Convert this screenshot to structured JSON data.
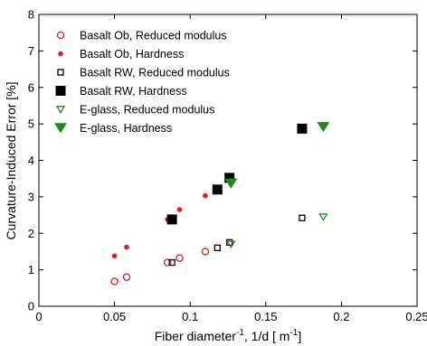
{
  "chart_data": {
    "type": "scatter",
    "xlabel": "Fiber diameter",
    "xlabel_sup": "-1",
    "xlabel_unit": ", 1/d [   m",
    "xlabel_unit_sup": "-1",
    "xlabel_close": "]",
    "ylabel": "Curvature-Induced Error [%]",
    "xlim": [
      0,
      0.25
    ],
    "ylim": [
      0,
      8
    ],
    "xticks": [
      0,
      0.05,
      0.1,
      0.15,
      0.2,
      0.25
    ],
    "xtick_labels": [
      "0",
      "0.05",
      "0.1",
      "0.15",
      "0.2",
      "0.25"
    ],
    "yticks": [
      0,
      1,
      2,
      3,
      4,
      5,
      6,
      7,
      8
    ],
    "ytick_labels": [
      "0",
      "1",
      "2",
      "3",
      "4",
      "5",
      "6",
      "7",
      "8"
    ],
    "grid": false,
    "legend_position": "top-left",
    "series": [
      {
        "name": "Basalt Ob, Reduced modulus",
        "marker": "circle-open",
        "color": "#e02020",
        "points": [
          [
            0.05,
            0.68
          ],
          [
            0.058,
            0.8
          ],
          [
            0.085,
            1.2
          ],
          [
            0.093,
            1.32
          ],
          [
            0.11,
            1.5
          ]
        ]
      },
      {
        "name": "Basalt Ob, Hardness",
        "marker": "circle-filled",
        "color": "#e02020",
        "points": [
          [
            0.05,
            1.38
          ],
          [
            0.058,
            1.62
          ],
          [
            0.085,
            2.38
          ],
          [
            0.093,
            2.65
          ],
          [
            0.11,
            3.03
          ]
        ]
      },
      {
        "name": "Basalt RW, Reduced modulus",
        "marker": "square-open",
        "color": "#000000",
        "points": [
          [
            0.088,
            1.2
          ],
          [
            0.118,
            1.6
          ],
          [
            0.126,
            1.75
          ],
          [
            0.174,
            2.42
          ]
        ]
      },
      {
        "name": "Basalt RW, Hardness",
        "marker": "square-filled",
        "color": "#000000",
        "points": [
          [
            0.088,
            2.38
          ],
          [
            0.118,
            3.2
          ],
          [
            0.126,
            3.52
          ],
          [
            0.174,
            4.87
          ]
        ]
      },
      {
        "name": "E-glass, Reduced modulus",
        "marker": "triangle-open",
        "color": "#1f8a1f",
        "points": [
          [
            0.127,
            1.7
          ],
          [
            0.188,
            2.45
          ]
        ]
      },
      {
        "name": "E-glass, Hardness",
        "marker": "triangle-filled",
        "color": "#1f8a1f",
        "points": [
          [
            0.127,
            3.37
          ],
          [
            0.188,
            4.92
          ]
        ]
      }
    ]
  }
}
